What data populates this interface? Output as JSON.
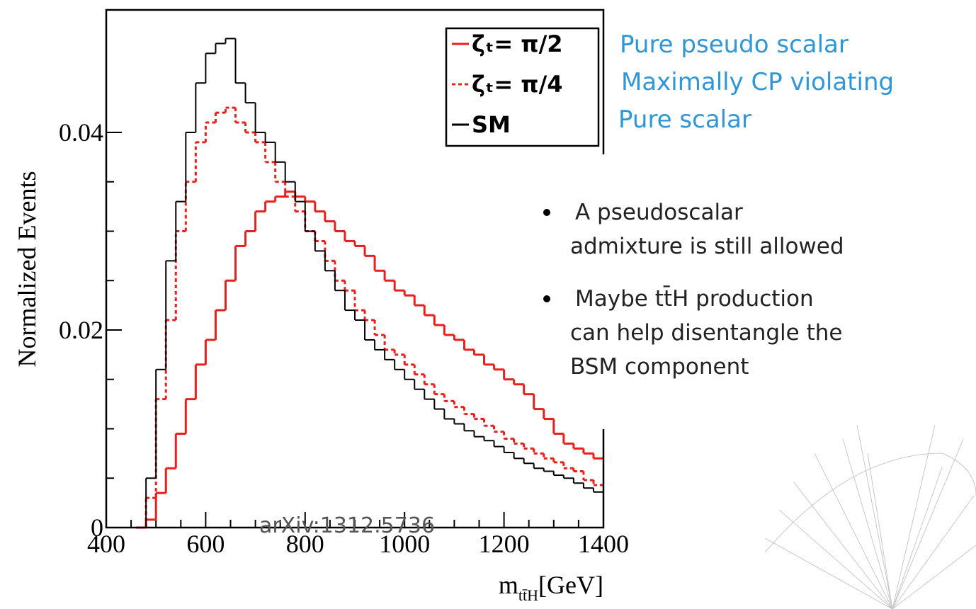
{
  "chart_data": {
    "type": "histogram",
    "x_label": {
      "symbol": "m",
      "subscript": "tt̄H",
      "unit": "[GeV]"
    },
    "y_label": "Normalized Events",
    "annotation": "arXiv:1312.5736",
    "bins": [
      460,
      480,
      500,
      520,
      540,
      560,
      580,
      600,
      620,
      640,
      660,
      680,
      700,
      720,
      740,
      760,
      780,
      800,
      820,
      840,
      860,
      880,
      900,
      920,
      940,
      960,
      980,
      1000,
      1020,
      1040,
      1060,
      1080,
      1100,
      1120,
      1140,
      1160,
      1180,
      1200,
      1220,
      1240,
      1260,
      1280,
      1300,
      1320,
      1340,
      1360,
      1380,
      1400
    ],
    "series": [
      {
        "name": "ζₜ= π/2",
        "color": "#e8201c",
        "dashed": false,
        "values": [
          0,
          0.0008,
          0.0035,
          0.006,
          0.0095,
          0.013,
          0.0165,
          0.019,
          0.022,
          0.025,
          0.0285,
          0.03,
          0.032,
          0.033,
          0.0335,
          0.034,
          0.0335,
          0.033,
          0.032,
          0.031,
          0.03,
          0.029,
          0.0285,
          0.0275,
          0.026,
          0.025,
          0.024,
          0.0235,
          0.0225,
          0.0215,
          0.0205,
          0.0195,
          0.019,
          0.018,
          0.0175,
          0.0165,
          0.016,
          0.015,
          0.0145,
          0.0135,
          0.012,
          0.011,
          0.0095,
          0.0085,
          0.008,
          0.0075,
          0.007
        ]
      },
      {
        "name": "ζₜ= π/4",
        "color": "#e8201c",
        "dashed": true,
        "values": [
          0,
          0.003,
          0.013,
          0.021,
          0.03,
          0.035,
          0.039,
          0.041,
          0.042,
          0.0425,
          0.041,
          0.04,
          0.039,
          0.037,
          0.035,
          0.0335,
          0.032,
          0.03,
          0.029,
          0.027,
          0.025,
          0.024,
          0.022,
          0.021,
          0.0195,
          0.018,
          0.0175,
          0.0165,
          0.0155,
          0.0145,
          0.0135,
          0.0128,
          0.0122,
          0.0115,
          0.011,
          0.0103,
          0.0097,
          0.009,
          0.0085,
          0.008,
          0.0075,
          0.007,
          0.0066,
          0.006,
          0.0057,
          0.0048,
          0.0043
        ]
      },
      {
        "name": "SM",
        "color": "#000000",
        "dashed": false,
        "values": [
          0,
          0.005,
          0.016,
          0.027,
          0.033,
          0.04,
          0.045,
          0.048,
          0.049,
          0.0495,
          0.045,
          0.043,
          0.04,
          0.039,
          0.037,
          0.035,
          0.033,
          0.03,
          0.028,
          0.026,
          0.024,
          0.022,
          0.021,
          0.019,
          0.018,
          0.017,
          0.016,
          0.015,
          0.014,
          0.013,
          0.012,
          0.011,
          0.0105,
          0.0098,
          0.0092,
          0.0088,
          0.0082,
          0.0076,
          0.007,
          0.0065,
          0.006,
          0.0057,
          0.0053,
          0.005,
          0.0045,
          0.004,
          0.0036
        ]
      }
    ],
    "xlim": [
      400,
      1400
    ],
    "xticks": [
      400,
      600,
      800,
      1000,
      1200,
      1400
    ],
    "ylim": [
      0,
      0.0524
    ],
    "yticks": [
      0,
      0.02,
      0.04
    ],
    "legend": "upper right",
    "legend_notes": [
      "Pure pseudo scalar",
      "Maximally CP violating",
      "Pure scalar"
    ]
  },
  "bullets": [
    [
      "A pseudoscalar",
      "admixture is still allowed"
    ],
    [
      "Maybe tt̄H production",
      "can help disentangle the",
      "BSM component"
    ]
  ]
}
